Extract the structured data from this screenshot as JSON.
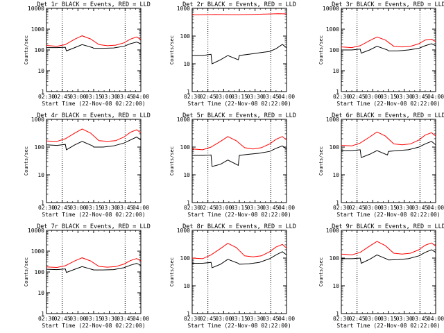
{
  "figure": {
    "xlabel": "Start Time (22-Nov-08 02:22:00)",
    "ylabel": "Counts/sec"
  },
  "chart_data": [
    {
      "type": "line",
      "title": "Det 1r BLACK = Events, RED = LLD",
      "xlabel": "Start Time (22-Nov-08 02:22:00)",
      "ylabel": "Counts/sec",
      "ylim": [
        1,
        10000
      ],
      "yscale": "log",
      "yticks": [
        {
          "v": 1,
          "label": "1"
        },
        {
          "v": 10,
          "label": "10"
        },
        {
          "v": 100,
          "label": "100"
        },
        {
          "v": 1000,
          "label": "1000"
        },
        {
          "v": 10000,
          "label": "10000"
        }
      ],
      "x_ticks": [
        "02:30",
        "02:45",
        "03:00",
        "03:15",
        "03:30",
        "03:45",
        "04:00"
      ],
      "xlim_min": [
        8,
        98
      ],
      "dotted_lines_min": [
        23,
        83
      ],
      "series": [
        {
          "name": "Events",
          "color": "#000000",
          "x": [
            8,
            18,
            26,
            27,
            35,
            42,
            52,
            53,
            62,
            72,
            82,
            88,
            94,
            98
          ],
          "y": [
            130,
            130,
            135,
            90,
            130,
            180,
            130,
            120,
            120,
            125,
            150,
            200,
            240,
            200
          ]
        },
        {
          "name": "LLD",
          "color": "#ff0000",
          "x": [
            8,
            18,
            26,
            35,
            42,
            50,
            58,
            66,
            74,
            82,
            88,
            94,
            98
          ],
          "y": [
            165,
            150,
            180,
            330,
            480,
            340,
            180,
            160,
            170,
            220,
            330,
            420,
            320
          ]
        }
      ]
    },
    {
      "type": "line",
      "title": "Det 2r BLACK = Events, RED = LLD",
      "xlabel": "Start Time (22-Nov-08 02:22:00)",
      "ylabel": "Counts/sec",
      "ylim": [
        1,
        1000
      ],
      "yscale": "log",
      "yticks": [
        {
          "v": 1,
          "label": "1"
        },
        {
          "v": 10,
          "label": "10"
        },
        {
          "v": 100,
          "label": "100"
        },
        {
          "v": 1000,
          "label": "1000"
        }
      ],
      "x_ticks": [
        "02:30",
        "02:45",
        "03:00",
        "03:15",
        "03:30",
        "03:45",
        "04:00"
      ],
      "xlim_min": [
        8,
        98
      ],
      "dotted_lines_min": [
        23,
        83
      ],
      "series": [
        {
          "name": "Events",
          "color": "#000000",
          "x": [
            8,
            18,
            26,
            27,
            35,
            42,
            52,
            53,
            62,
            72,
            82,
            88,
            94,
            98
          ],
          "y": [
            20,
            20,
            22,
            10,
            14,
            20,
            14,
            20,
            22,
            25,
            28,
            35,
            50,
            38
          ]
        },
        {
          "name": "LLD",
          "color": "#ff0000",
          "x": [
            8,
            30,
            50,
            70,
            90,
            98
          ],
          "y": [
            580,
            600,
            590,
            610,
            640,
            630
          ]
        }
      ]
    },
    {
      "type": "line",
      "title": "Det 3r BLACK = Events, RED = LLD",
      "xlabel": "Start Time (22-Nov-08 02:22:00)",
      "ylabel": "Counts/sec",
      "ylim": [
        1,
        10000
      ],
      "yscale": "log",
      "yticks": [
        {
          "v": 1,
          "label": "1"
        },
        {
          "v": 10,
          "label": "10"
        },
        {
          "v": 100,
          "label": "100"
        },
        {
          "v": 1000,
          "label": "1000"
        },
        {
          "v": 10000,
          "label": "10000"
        }
      ],
      "x_ticks": [
        "02:30",
        "02:45",
        "03:00",
        "03:15",
        "03:30",
        "03:45",
        "04:00"
      ],
      "xlim_min": [
        8,
        98
      ],
      "dotted_lines_min": [
        23,
        83
      ],
      "series": [
        {
          "name": "Events",
          "color": "#000000",
          "x": [
            8,
            18,
            26,
            27,
            35,
            42,
            52,
            53,
            62,
            72,
            82,
            88,
            94,
            98
          ],
          "y": [
            100,
            100,
            110,
            70,
            100,
            150,
            100,
            90,
            90,
            100,
            120,
            160,
            200,
            160
          ]
        },
        {
          "name": "LLD",
          "color": "#ff0000",
          "x": [
            8,
            18,
            26,
            35,
            42,
            50,
            58,
            66,
            74,
            82,
            88,
            94,
            98
          ],
          "y": [
            140,
            130,
            160,
            280,
            420,
            300,
            150,
            140,
            150,
            200,
            300,
            330,
            250
          ]
        }
      ]
    },
    {
      "type": "line",
      "title": "Det 4r BLACK = Events, RED = LLD",
      "xlabel": "Start Time (22-Nov-08 02:22:00)",
      "ylabel": "Counts/sec",
      "ylim": [
        1,
        1000
      ],
      "yscale": "log",
      "yticks": [
        {
          "v": 1,
          "label": "1"
        },
        {
          "v": 10,
          "label": "10"
        },
        {
          "v": 100,
          "label": "100"
        },
        {
          "v": 1000,
          "label": "1000"
        }
      ],
      "x_ticks": [
        "02:30",
        "02:45",
        "03:00",
        "03:15",
        "03:30",
        "03:45",
        "04:00"
      ],
      "xlim_min": [
        8,
        98
      ],
      "dotted_lines_min": [
        23,
        83
      ],
      "series": [
        {
          "name": "Events",
          "color": "#000000",
          "x": [
            8,
            18,
            26,
            27,
            35,
            42,
            52,
            53,
            62,
            72,
            82,
            88,
            94,
            98
          ],
          "y": [
            120,
            115,
            125,
            80,
            120,
            160,
            110,
            100,
            100,
            110,
            140,
            180,
            230,
            180
          ]
        },
        {
          "name": "LLD",
          "color": "#ff0000",
          "x": [
            8,
            18,
            26,
            35,
            42,
            50,
            58,
            66,
            74,
            82,
            88,
            94,
            98
          ],
          "y": [
            165,
            160,
            200,
            320,
            450,
            320,
            170,
            160,
            170,
            230,
            340,
            420,
            330
          ]
        }
      ]
    },
    {
      "type": "line",
      "title": "Det 5r BLACK = Events, RED = LLD",
      "xlabel": "Start Time (22-Nov-08 02:22:00)",
      "ylabel": "Counts/sec",
      "ylim": [
        1,
        1000
      ],
      "yscale": "log",
      "yticks": [
        {
          "v": 1,
          "label": "1"
        },
        {
          "v": 10,
          "label": "10"
        },
        {
          "v": 100,
          "label": "100"
        },
        {
          "v": 1000,
          "label": "1000"
        }
      ],
      "x_ticks": [
        "02:30",
        "02:45",
        "03:00",
        "03:15",
        "03:30",
        "03:45",
        "04:00"
      ],
      "xlim_min": [
        8,
        98
      ],
      "dotted_lines_min": [
        23,
        83
      ],
      "series": [
        {
          "name": "Events",
          "color": "#000000",
          "x": [
            8,
            18,
            26,
            27,
            35,
            42,
            52,
            53,
            62,
            72,
            82,
            88,
            94,
            98
          ],
          "y": [
            50,
            50,
            52,
            20,
            24,
            34,
            22,
            50,
            55,
            60,
            70,
            90,
            110,
            85
          ]
        },
        {
          "name": "LLD",
          "color": "#ff0000",
          "x": [
            8,
            18,
            26,
            35,
            42,
            50,
            58,
            66,
            74,
            82,
            88,
            94,
            98
          ],
          "y": [
            85,
            80,
            100,
            160,
            240,
            170,
            95,
            85,
            95,
            130,
            190,
            240,
            180
          ]
        }
      ]
    },
    {
      "type": "line",
      "title": "Det 6r BLACK = Events, RED = LLD",
      "xlabel": "Start Time (22-Nov-08 02:22:00)",
      "ylabel": "Counts/sec",
      "ylim": [
        1,
        1000
      ],
      "yscale": "log",
      "yticks": [
        {
          "v": 1,
          "label": "1"
        },
        {
          "v": 10,
          "label": "10"
        },
        {
          "v": 100,
          "label": "100"
        },
        {
          "v": 1000,
          "label": "1000"
        }
      ],
      "x_ticks": [
        "02:30",
        "02:45",
        "03:00",
        "03:15",
        "03:30",
        "03:45",
        "04:00"
      ],
      "xlim_min": [
        8,
        98
      ],
      "dotted_lines_min": [
        23,
        83
      ],
      "series": [
        {
          "name": "Events",
          "color": "#000000",
          "x": [
            8,
            18,
            26,
            27,
            35,
            42,
            52,
            53,
            62,
            72,
            82,
            88,
            94,
            98
          ],
          "y": [
            75,
            75,
            80,
            42,
            55,
            75,
            52,
            70,
            75,
            80,
            100,
            130,
            160,
            120
          ]
        },
        {
          "name": "LLD",
          "color": "#ff0000",
          "x": [
            8,
            18,
            26,
            35,
            42,
            50,
            58,
            66,
            74,
            82,
            88,
            94,
            98
          ],
          "y": [
            115,
            110,
            140,
            230,
            350,
            250,
            130,
            120,
            130,
            180,
            270,
            330,
            250
          ]
        }
      ]
    },
    {
      "type": "line",
      "title": "Det 7r BLACK = Events, RED = LLD",
      "xlabel": "Start Time (22-Nov-08 02:22:00)",
      "ylabel": "Counts/sec",
      "ylim": [
        1,
        10000
      ],
      "yscale": "log",
      "yticks": [
        {
          "v": 1,
          "label": "1"
        },
        {
          "v": 10,
          "label": "10"
        },
        {
          "v": 100,
          "label": "100"
        },
        {
          "v": 1000,
          "label": "1000"
        },
        {
          "v": 10000,
          "label": "10000"
        }
      ],
      "x_ticks": [
        "02:30",
        "02:45",
        "03:00",
        "03:15",
        "03:30",
        "03:45",
        "04:00"
      ],
      "xlim_min": [
        8,
        98
      ],
      "dotted_lines_min": [
        23,
        83
      ],
      "series": [
        {
          "name": "Events",
          "color": "#000000",
          "x": [
            8,
            18,
            26,
            27,
            35,
            42,
            52,
            53,
            62,
            72,
            82,
            88,
            94,
            98
          ],
          "y": [
            135,
            130,
            140,
            95,
            135,
            180,
            130,
            125,
            125,
            130,
            160,
            210,
            260,
            210
          ]
        },
        {
          "name": "LLD",
          "color": "#ff0000",
          "x": [
            8,
            18,
            26,
            35,
            42,
            50,
            58,
            66,
            74,
            82,
            88,
            94,
            98
          ],
          "y": [
            175,
            165,
            200,
            340,
            480,
            340,
            185,
            170,
            180,
            240,
            350,
            440,
            340
          ]
        }
      ]
    },
    {
      "type": "line",
      "title": "Det 8r BLACK = Events, RED = LLD",
      "xlabel": "Start Time (22-Nov-08 02:22:00)",
      "ylabel": "Counts/sec",
      "ylim": [
        1,
        1000
      ],
      "yscale": "log",
      "yticks": [
        {
          "v": 1,
          "label": "1"
        },
        {
          "v": 10,
          "label": "10"
        },
        {
          "v": 100,
          "label": "100"
        },
        {
          "v": 1000,
          "label": "1000"
        }
      ],
      "x_ticks": [
        "02:30",
        "02:45",
        "03:00",
        "03:15",
        "03:30",
        "03:45",
        "04:00"
      ],
      "xlim_min": [
        8,
        98
      ],
      "dotted_lines_min": [
        23,
        83
      ],
      "series": [
        {
          "name": "Events",
          "color": "#000000",
          "x": [
            8,
            18,
            26,
            27,
            35,
            42,
            52,
            53,
            62,
            72,
            82,
            88,
            94,
            98
          ],
          "y": [
            65,
            65,
            70,
            45,
            60,
            90,
            65,
            60,
            62,
            70,
            95,
            130,
            170,
            130
          ]
        },
        {
          "name": "LLD",
          "color": "#ff0000",
          "x": [
            8,
            18,
            26,
            35,
            42,
            50,
            58,
            66,
            74,
            82,
            88,
            94,
            98
          ],
          "y": [
            100,
            95,
            130,
            220,
            340,
            240,
            120,
            110,
            120,
            170,
            250,
            310,
            230
          ]
        }
      ]
    },
    {
      "type": "line",
      "title": "Det 9r BLACK = Events, RED = LLD",
      "xlabel": "Start Time (22-Nov-08 02:22:00)",
      "ylabel": "Counts/sec",
      "ylim": [
        1,
        1000
      ],
      "yscale": "log",
      "yticks": [
        {
          "v": 1,
          "label": "1"
        },
        {
          "v": 10,
          "label": "10"
        },
        {
          "v": 100,
          "label": "100"
        },
        {
          "v": 1000,
          "label": "1000"
        }
      ],
      "x_ticks": [
        "02:30",
        "02:45",
        "03:00",
        "03:15",
        "03:30",
        "03:45",
        "04:00"
      ],
      "xlim_min": [
        8,
        98
      ],
      "dotted_lines_min": [
        23,
        83
      ],
      "series": [
        {
          "name": "Events",
          "color": "#000000",
          "x": [
            8,
            18,
            26,
            27,
            35,
            42,
            52,
            53,
            62,
            72,
            82,
            88,
            94,
            98
          ],
          "y": [
            95,
            95,
            100,
            65,
            90,
            130,
            90,
            85,
            88,
            95,
            120,
            160,
            200,
            160
          ]
        },
        {
          "name": "LLD",
          "color": "#ff0000",
          "x": [
            8,
            18,
            26,
            35,
            42,
            50,
            58,
            66,
            74,
            82,
            88,
            94,
            98
          ],
          "y": [
            140,
            130,
            160,
            270,
            400,
            280,
            150,
            140,
            150,
            200,
            290,
            350,
            270
          ]
        }
      ]
    }
  ]
}
